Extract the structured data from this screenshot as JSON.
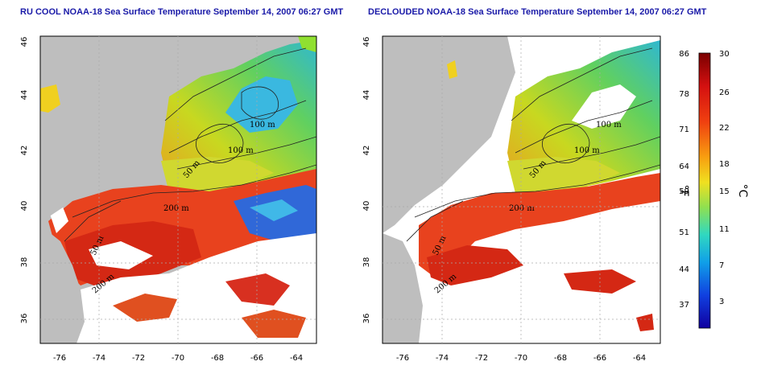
{
  "panels": [
    {
      "title": "RU COOL NOAA-18 Sea Surface Temperature September 14, 2007 06:27 GMT"
    },
    {
      "title": "DECLOUDED NOAA-18 Sea Surface Temperature September 14, 2007 06:27 GMT"
    }
  ],
  "axes": {
    "lat_ticks": [
      "46",
      "44",
      "42",
      "40",
      "38",
      "36"
    ],
    "lon_ticks": [
      "-76",
      "-74",
      "-72",
      "-70",
      "-68",
      "-66",
      "-64"
    ]
  },
  "contour_labels": [
    "100 m",
    "100 m",
    "50 m",
    "200 m",
    "50 m",
    "200 m"
  ],
  "colorbar": {
    "fahrenheit_ticks": [
      "86",
      "78",
      "71",
      "64",
      "59",
      "51",
      "44",
      "37"
    ],
    "celsius_ticks": [
      "30",
      "26",
      "22",
      "18",
      "15",
      "11",
      "7",
      "3"
    ],
    "fahrenheit_unit": "°F",
    "celsius_unit": "°C"
  },
  "colors": {
    "land": "#bebebe",
    "cloud": "#ffffff",
    "title": "#1a1aa8",
    "warm": "#e8321e",
    "cool": "#3ac2d8",
    "cold": "#2a4ad8"
  }
}
